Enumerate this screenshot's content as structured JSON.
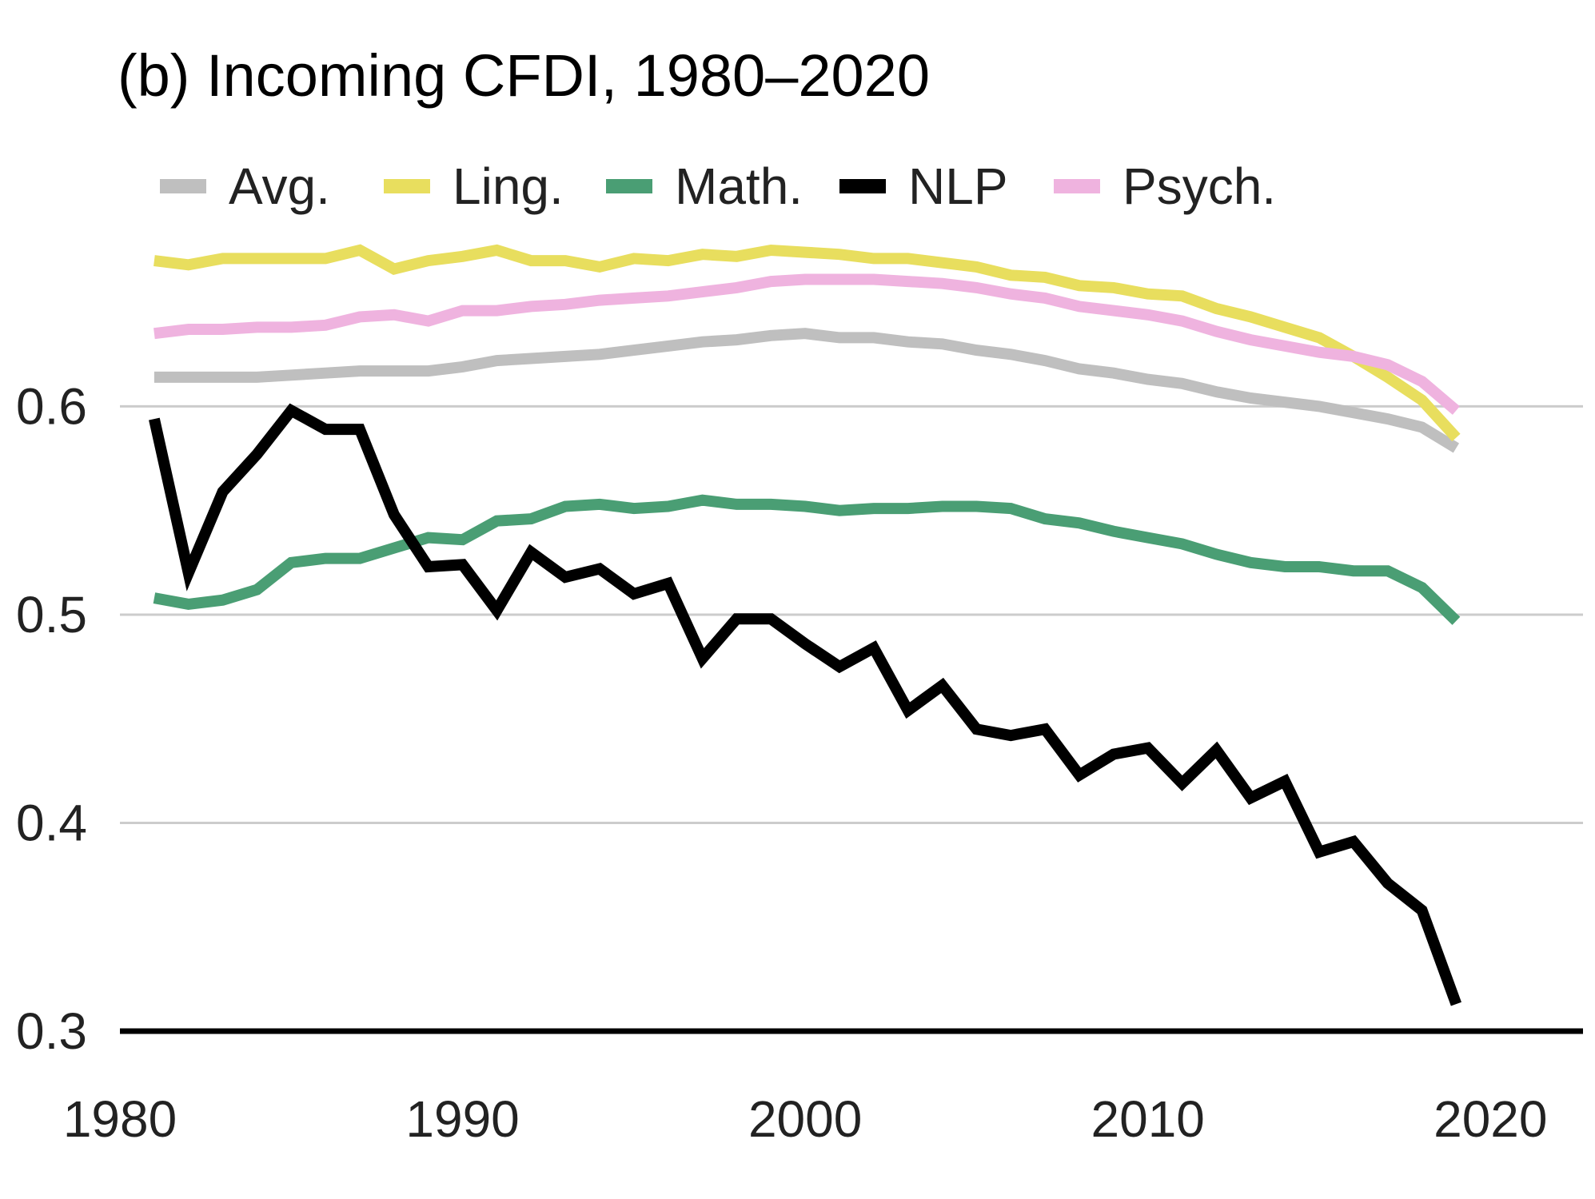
{
  "chart_data": {
    "type": "line",
    "title": "(b) Incoming CFDI, 1980–2020",
    "xlabel": "",
    "ylabel": "",
    "xlim": [
      1980,
      2022.7
    ],
    "ylim": [
      0.3,
      0.68
    ],
    "grid": "horizontal",
    "legend_position": "top",
    "x_ticks": [
      1980,
      1990,
      2000,
      2010,
      2020
    ],
    "x_tick_labels": [
      "1980",
      "1990",
      "2000",
      "2010",
      "2020"
    ],
    "y_ticks": [
      0.3,
      0.4,
      0.5,
      0.6
    ],
    "y_tick_labels": [
      "0.3",
      "0.4",
      "0.5",
      "0.6"
    ],
    "x": [
      1981,
      1982,
      1983,
      1984,
      1985,
      1986,
      1987,
      1988,
      1989,
      1990,
      1991,
      1992,
      1993,
      1994,
      1995,
      1996,
      1997,
      1998,
      1999,
      2000,
      2001,
      2002,
      2003,
      2004,
      2005,
      2006,
      2007,
      2008,
      2009,
      2010,
      2011,
      2012,
      2013,
      2014,
      2015,
      2016,
      2017,
      2018,
      2019
    ],
    "series": [
      {
        "name": "Avg.",
        "color": "#bfbfbf",
        "values": [
          0.614,
          0.614,
          0.614,
          0.614,
          0.615,
          0.616,
          0.617,
          0.617,
          0.617,
          0.619,
          0.622,
          0.623,
          0.624,
          0.625,
          0.627,
          0.629,
          0.631,
          0.632,
          0.634,
          0.635,
          0.633,
          0.633,
          0.631,
          0.63,
          0.627,
          0.625,
          0.622,
          0.618,
          0.616,
          0.613,
          0.611,
          0.607,
          0.604,
          0.602,
          0.6,
          0.597,
          0.594,
          0.59,
          0.58
        ]
      },
      {
        "name": "Ling.",
        "color": "#e8de5e",
        "values": [
          0.67,
          0.668,
          0.671,
          0.671,
          0.671,
          0.671,
          0.675,
          0.666,
          0.67,
          0.672,
          0.675,
          0.67,
          0.67,
          0.667,
          0.671,
          0.67,
          0.673,
          0.672,
          0.675,
          0.674,
          0.673,
          0.671,
          0.671,
          0.669,
          0.667,
          0.663,
          0.662,
          0.658,
          0.657,
          0.654,
          0.653,
          0.647,
          0.643,
          0.638,
          0.633,
          0.624,
          0.614,
          0.603,
          0.585
        ]
      },
      {
        "name": "Math.",
        "color": "#4a9e74",
        "values": [
          0.508,
          0.505,
          0.507,
          0.512,
          0.525,
          0.527,
          0.527,
          0.532,
          0.537,
          0.536,
          0.545,
          0.546,
          0.552,
          0.553,
          0.551,
          0.552,
          0.555,
          0.553,
          0.553,
          0.552,
          0.55,
          0.551,
          0.551,
          0.552,
          0.552,
          0.551,
          0.546,
          0.544,
          0.54,
          0.537,
          0.534,
          0.529,
          0.525,
          0.523,
          0.523,
          0.521,
          0.521,
          0.513,
          0.497
        ]
      },
      {
        "name": "NLP",
        "color": "#000000",
        "values": [
          0.594,
          0.52,
          0.559,
          0.577,
          0.598,
          0.589,
          0.589,
          0.548,
          0.523,
          0.524,
          0.502,
          0.53,
          0.518,
          0.522,
          0.51,
          0.515,
          0.479,
          0.498,
          0.498,
          0.486,
          0.475,
          0.484,
          0.454,
          0.466,
          0.445,
          0.442,
          0.445,
          0.423,
          0.433,
          0.436,
          0.419,
          0.435,
          0.412,
          0.42,
          0.386,
          0.391,
          0.371,
          0.358,
          0.313
        ]
      },
      {
        "name": "Psych.",
        "color": "#efb3df",
        "values": [
          0.635,
          0.637,
          0.637,
          0.638,
          0.638,
          0.639,
          0.643,
          0.644,
          0.641,
          0.646,
          0.646,
          0.648,
          0.649,
          0.651,
          0.652,
          0.653,
          0.655,
          0.657,
          0.66,
          0.661,
          0.661,
          0.661,
          0.66,
          0.659,
          0.657,
          0.654,
          0.652,
          0.648,
          0.646,
          0.644,
          0.641,
          0.636,
          0.632,
          0.629,
          0.626,
          0.624,
          0.62,
          0.612,
          0.598
        ]
      }
    ]
  }
}
